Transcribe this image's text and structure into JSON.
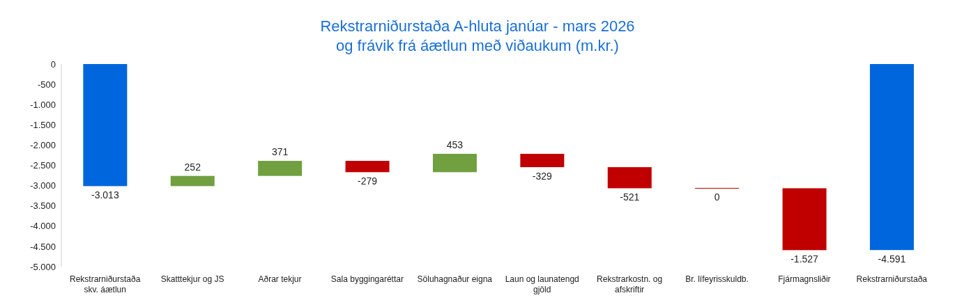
{
  "chart_data": {
    "type": "bar",
    "title": "Rekstrarniðurstaða A-hluta janúar - mars 2026\nog frávik frá áætlun með viðaukum (m.kr.)",
    "categories": [
      "Rekstrarniðurstaða skv. áætlun",
      "Skatttekjur og JS",
      "Aðrar tekjur",
      "Sala byggingaréttar",
      "Söluhagnaður eigna",
      "Laun og launatengd gjöld",
      "Rekstrarkostn. og afskriftir",
      "Br. lífeyrisskuldb.",
      "Fjármagnsliðir",
      "Rekstrarniðurstaða"
    ],
    "values": [
      -3013,
      252,
      371,
      -279,
      453,
      -329,
      -521,
      0,
      -1527,
      -4591
    ],
    "base": [
      0,
      -3013,
      -2761,
      -2390,
      -2669,
      -2216,
      -2545,
      -3066,
      -3066,
      0
    ],
    "colors": [
      "#0066dd",
      "#70a040",
      "#70a040",
      "#c00000",
      "#70a040",
      "#c00000",
      "#c00000",
      "#c00000",
      "#c00000",
      "#0066dd"
    ],
    "value_labels": [
      "-3.013",
      "252",
      "371",
      "-279",
      "453",
      "-329",
      "-521",
      "0",
      "-1.527",
      "-4.591"
    ],
    "ylim": [
      -5000,
      0
    ],
    "yticks": [
      0,
      -500,
      {
        "value": -1000,
        "label": "-1.000"
      },
      {
        "value": -1500,
        "label": "-1.500"
      },
      {
        "value": -2000,
        "label": "-2.000"
      },
      {
        "value": -2500,
        "label": "-2.500"
      },
      {
        "value": -3000,
        "label": "-3.000"
      },
      {
        "value": -3500,
        "label": "-3.500"
      },
      {
        "value": -4000,
        "label": "-4.000"
      },
      {
        "value": -4500,
        "label": "-4.500"
      },
      {
        "value": -5000,
        "label": "-5.000"
      }
    ],
    "grid": false,
    "legend": false
  }
}
